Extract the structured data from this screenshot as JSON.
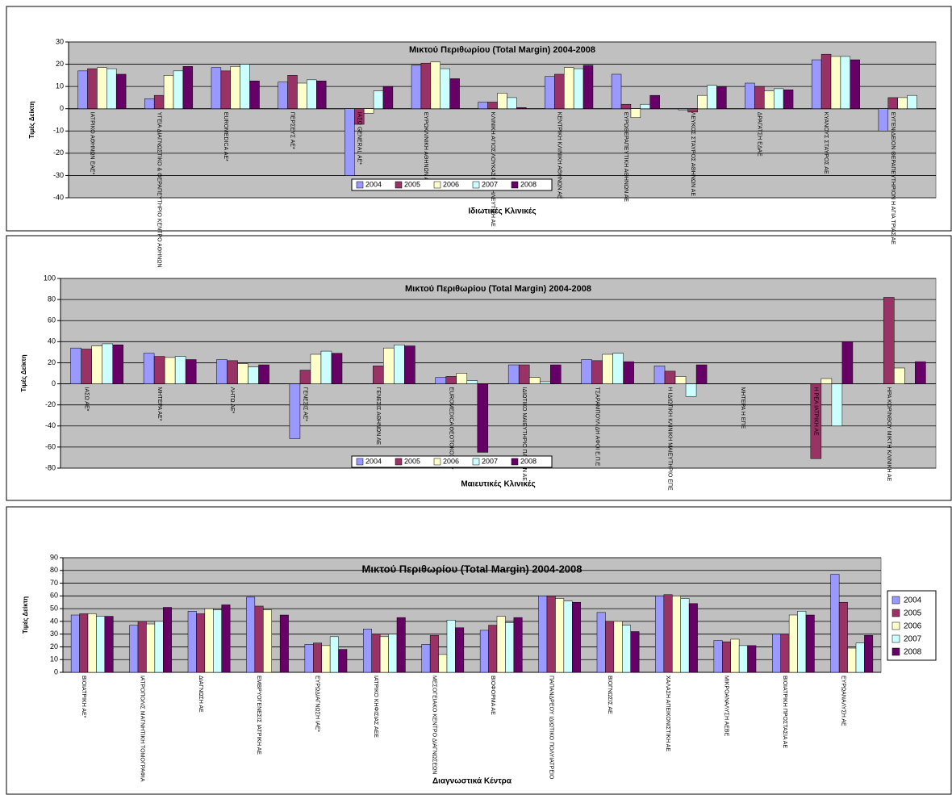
{
  "chart_data": [
    {
      "type": "bar",
      "title": "Μικτού Περιθωρίου (Total Margin) 2004-2008",
      "x_label": "Ιδιωτικές Κλινικές",
      "y_label": "Τιμές Δείκτη",
      "categories": [
        "ΙΑΤΡΙΚΟ ΑΘΗΝΩΝ ΕΑΕ*",
        "ΥΓΕΙΑ ΔΙΑΓΝΩΣΤΙΚΟ & ΘΕΡΑΠΕΥΤΗΡΙΟ ΚΕΝΤΡΟ ΑΘΗΝΩΝ",
        "EUROMEDICA ΑΕ*",
        "ΠΕΡΣΕΥΣ ΑΕ*",
        "ΙΑΣΩ GENERAL ΑΕ*",
        "ΕΥΡΩΚΛΙΝΙΚΗ ΑΘΗΝΩΝ ΑΕ*",
        "ΚΛΙΝΙΚΗ ΑΓΙΟΣ ΛΟΥΚΑΣ ΝΟΣΗΛΕΥΤΙΚΗ ΑΕ",
        "ΚΕΝΤΡΙΚΗ ΚΛΙΝΙΚΗ ΑΘΗΝΩΝ ΑΕ",
        "ΕΥΡΩΘΕΡΑΠΕΥΤΙΚΗ ΑΘΗΝΩΝ ΑΕ",
        "ΛΕΥΚΟΣ ΣΤΑΥΡΟΣ ΑΘΗΝΩΝ ΑΕ",
        "ΔΡΑΓΑΤΣΗ ΕΔΑΕ",
        "ΚΥΑΝΟΥΣ ΣΤΑΥΡΟΣ ΑΕ",
        "ΕΥΓΕΝΙΔΕΙΟΝ ΘΕΡΑΠΕΥΤΗΡΙΟΝ Η ΑΓΙΑ ΤΡΙΑΣ ΑΕ"
      ],
      "series": [
        {
          "name": "2004",
          "color": "#9999ff",
          "values": [
            17,
            4.5,
            18.5,
            12,
            -30,
            19.5,
            3,
            14.5,
            15.5,
            -0.5,
            11.5,
            22,
            -10
          ]
        },
        {
          "name": "2005",
          "color": "#993366",
          "values": [
            18,
            6,
            17,
            15,
            -7,
            20.5,
            3,
            15.5,
            2,
            -1.5,
            10,
            24.5,
            5
          ]
        },
        {
          "name": "2006",
          "color": "#ffffcc",
          "values": [
            18.5,
            15,
            19,
            11.5,
            -2,
            21,
            7,
            18.5,
            -4,
            6,
            8,
            23.5,
            5
          ]
        },
        {
          "name": "2007",
          "color": "#ccffff",
          "values": [
            18,
            17,
            20,
            13,
            8,
            18,
            5,
            18,
            2,
            10.5,
            9,
            23.5,
            6
          ]
        },
        {
          "name": "2008",
          "color": "#660066",
          "values": [
            15.5,
            19,
            12.5,
            12.5,
            10,
            13.5,
            0.5,
            19.5,
            6,
            10,
            8.5,
            22,
            null
          ]
        }
      ],
      "ylim": [
        -40,
        30
      ],
      "yticks": [
        -40,
        -30,
        -20,
        -10,
        0,
        10,
        20,
        30
      ],
      "grid": true,
      "legend": "bottom"
    },
    {
      "type": "bar",
      "title": "Μικτού Περιθωρίου (Total Margin) 2004-2008",
      "x_label": "Μαιευτικές Κλινικές",
      "y_label": "Τιμές Δείκτη",
      "categories": [
        "ΙΑΣΩ ΑΕ*",
        "ΜΗΤΕΡΑ ΑΕ*",
        "ΛΗΤΩ ΑΕ*",
        "ΓΕΝΕΣΙΣ ΑΕ*",
        "ΓΕΝΕΣΙΣ ΑΘΗΝΩΝ ΑΕ",
        "EUROMEDICA ΘΕΟΤΟΚΟΣ ΑΕ*",
        "ΙΔΙΩΤΙΚΟ ΜΑΙΕΥΤΗΡΙΟ ΠΑΤΡΩΝ ΑΕ",
        "ΤΣΑΡΑΜΠΟΥΛΙΔΗ ΑΦΟΙ Ε.Π.Ε",
        "Η ΙΔΙΩΤΙΚΗ ΚΛΙΝΙΚΗ ΜΑΙΕΥΤΗΡΙΟ ΕΠΕ",
        "ΜΗΤΕΡΑ Η ΕΠΕ",
        "Η ΡΕΑ ΙΑΤΡΙΚΗ ΑΕ",
        "ΗΡΑ ΚΟΡΙΝΘΟΥ ΜΙΚΤΗ ΚΛΙΝΙΚΗ ΑΕ"
      ],
      "series": [
        {
          "name": "2004",
          "color": "#9999ff",
          "values": [
            34,
            29,
            23,
            -52,
            null,
            6,
            18,
            23,
            17,
            null,
            null,
            null
          ]
        },
        {
          "name": "2005",
          "color": "#993366",
          "values": [
            33,
            26,
            22,
            13,
            17,
            7,
            18,
            22,
            12,
            null,
            -71,
            82
          ]
        },
        {
          "name": "2006",
          "color": "#ffffcc",
          "values": [
            36,
            25,
            19,
            28,
            34,
            10,
            6,
            28,
            7,
            null,
            5,
            15
          ]
        },
        {
          "name": "2007",
          "color": "#ccffff",
          "values": [
            38,
            26,
            16,
            31,
            37,
            3,
            2,
            29,
            -12,
            null,
            -40,
            null
          ]
        },
        {
          "name": "2008",
          "color": "#660066",
          "values": [
            37,
            23,
            18,
            29,
            36,
            -65,
            18,
            21,
            18,
            null,
            40,
            21
          ]
        }
      ],
      "ylim": [
        -80,
        100
      ],
      "yticks": [
        -80,
        -60,
        -40,
        -20,
        0,
        20,
        40,
        60,
        80,
        100
      ],
      "grid": true,
      "legend": "bottom"
    },
    {
      "type": "bar",
      "title": "Μικτού Περιθωρίου (Total Margin) 2004-2008",
      "x_label": "Διαγνωστικά Κέντρα",
      "y_label": "Τιμές Δείκτη",
      "categories": [
        "ΒΙΟΙΑΤΡΙΚΗ ΑΕ*",
        "ΙΑΤΡΟΠΟΛΙΣ ΜΑΓΝΗΤΙΚΗ ΤΟΜΟΓΡΑΦΙΑ",
        "ΔΙΑΓΝΩΣΗ ΑΕ",
        "ΕΜΒΡΥΟΓΕΝΕΣΙΣ ΙΑΤΡΙΚΗ ΑΕ",
        "ΕΥΡΩΔΙΑΓΝΩΣΗ ΙΑΕ*",
        "ΙΑΤΡΙΚΟ ΚΗΦΙΣΙΑΣ ΑΕΕ",
        "ΜΕΣΟΓΕΙΑΚΟ ΚΕΝΤΡΟ ΔΙΑΓΝΩΣΕΩΝ",
        "ΒΙΟΦΟΡΜΑ ΑΕ",
        "ΠΑΠΑΝΔΡΕΟΥ ΙΔΙΩΤΙΚΟ ΠΟΛΥΙΑΤΡΕΙΟ",
        "ΒΙΟΓΝΩΣΙΣ ΑΕ",
        "ΧΑΛΑΣΗ ΑΠΕΙΚΟΝΙΣΤΙΚΗ ΑΕ",
        "ΜΙΚΡΟΑΝΑΛΥΣΗ ΑΕΒΕ",
        "ΒΙΟΙΑΤΡΙΚΗ ΠΡΟΣΤΑΣΙΑ ΑΕ",
        "ΕΥΡΩΑΝΑΛΥΣΗ ΑΕ"
      ],
      "series": [
        {
          "name": "2004",
          "color": "#9999ff",
          "values": [
            45,
            37,
            48,
            59,
            22,
            34,
            22,
            33,
            60,
            47,
            60,
            25,
            30,
            77
          ]
        },
        {
          "name": "2005",
          "color": "#993366",
          "values": [
            46,
            40,
            46,
            52,
            23,
            30,
            29,
            37,
            60,
            40,
            61,
            24,
            30,
            55
          ]
        },
        {
          "name": "2006",
          "color": "#ffffcc",
          "values": [
            46,
            38,
            50,
            49,
            21,
            28,
            14,
            44,
            58,
            40,
            60,
            26,
            45,
            19
          ]
        },
        {
          "name": "2007",
          "color": "#ccffff",
          "values": [
            44,
            40,
            49,
            null,
            28,
            30,
            41,
            39,
            56,
            37,
            58,
            21,
            48,
            23
          ]
        },
        {
          "name": "2008",
          "color": "#660066",
          "values": [
            44,
            51,
            53,
            45,
            18,
            43,
            35,
            43,
            55,
            32,
            54,
            21,
            45,
            29
          ]
        }
      ],
      "ylim": [
        0,
        90
      ],
      "yticks": [
        0,
        10,
        20,
        30,
        40,
        50,
        60,
        70,
        80,
        90
      ],
      "grid": true,
      "legend": "right"
    }
  ]
}
